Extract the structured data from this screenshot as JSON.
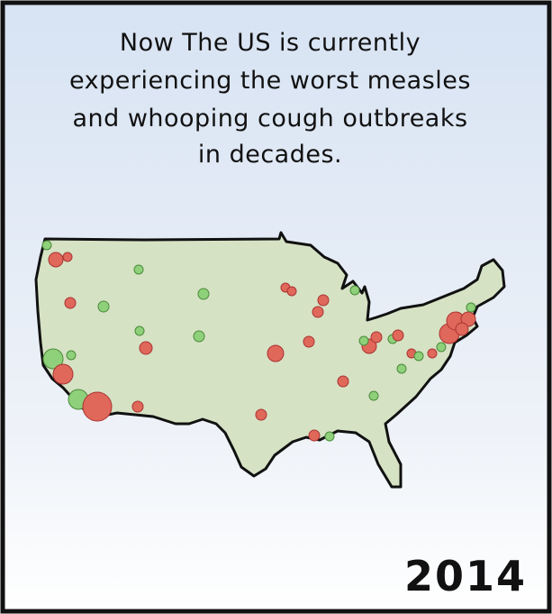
{
  "caption": {
    "lines": [
      "Now The US is currently",
      "experiencing the worst measles",
      "and whooping cough outbreaks",
      "in decades."
    ]
  },
  "year": "2014"
}
